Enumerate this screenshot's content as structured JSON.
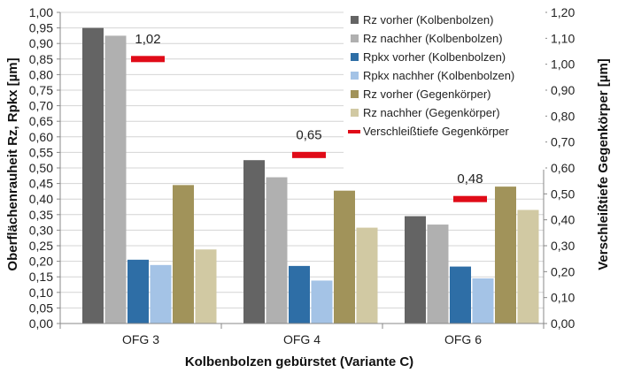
{
  "chart_data": {
    "type": "bar",
    "categories": [
      "OFG 3",
      "OFG 4",
      "OFG 6"
    ],
    "xlabel": "Kolbenbolzen gebürstet (Variante C)",
    "ylabel": "Oberflächenrauheit Rz, Rpkx [µm]",
    "y2label": "Verschleißtiefe Gegenkörper [µm]",
    "ylim": [
      0,
      1.0
    ],
    "y2lim": [
      0,
      1.2
    ],
    "yticks": [
      "0,00",
      "0,05",
      "0,10",
      "0,15",
      "0,20",
      "0,25",
      "0,30",
      "0,35",
      "0,40",
      "0,45",
      "0,50",
      "0,55",
      "0,60",
      "0,65",
      "0,70",
      "0,75",
      "0,80",
      "0,85",
      "0,90",
      "0,95",
      "1,00"
    ],
    "y2ticks": [
      "0,00",
      "0,10",
      "0,20",
      "0,30",
      "0,40",
      "0,50",
      "0,60",
      "0,70",
      "0,80",
      "0,90",
      "1,00",
      "1,10",
      "1,20"
    ],
    "series": [
      {
        "name": "Rz vorher (Kolbenbolzen)",
        "color": "#646464",
        "values": [
          0.95,
          0.525,
          0.345
        ]
      },
      {
        "name": "Rz nachher (Kolbenbolzen)",
        "color": "#b0b0b0",
        "values": [
          0.925,
          0.47,
          0.318
        ]
      },
      {
        "name": "Rpkx vorher (Kolbenbolzen)",
        "color": "#2e6ea6",
        "values": [
          0.205,
          0.185,
          0.183
        ]
      },
      {
        "name": "Rpkx nachher (Kolbenbolzen)",
        "color": "#a4c3e6",
        "values": [
          0.188,
          0.138,
          0.145
        ]
      },
      {
        "name": "Rz vorher (Gegenkörper)",
        "color": "#a1935a",
        "values": [
          0.445,
          0.427,
          0.44
        ]
      },
      {
        "name": "Rz nachher (Gegenkörper)",
        "color": "#d1c9a3",
        "values": [
          0.238,
          0.308,
          0.365
        ]
      }
    ],
    "secondary": {
      "name": "Verschleißtiefe Gegenkörper",
      "color": "#e00b18",
      "values": [
        1.02,
        0.65,
        0.48
      ],
      "labels": [
        "1,02",
        "0,65",
        "0,48"
      ]
    },
    "legend": "top-right inside",
    "grid": true
  }
}
